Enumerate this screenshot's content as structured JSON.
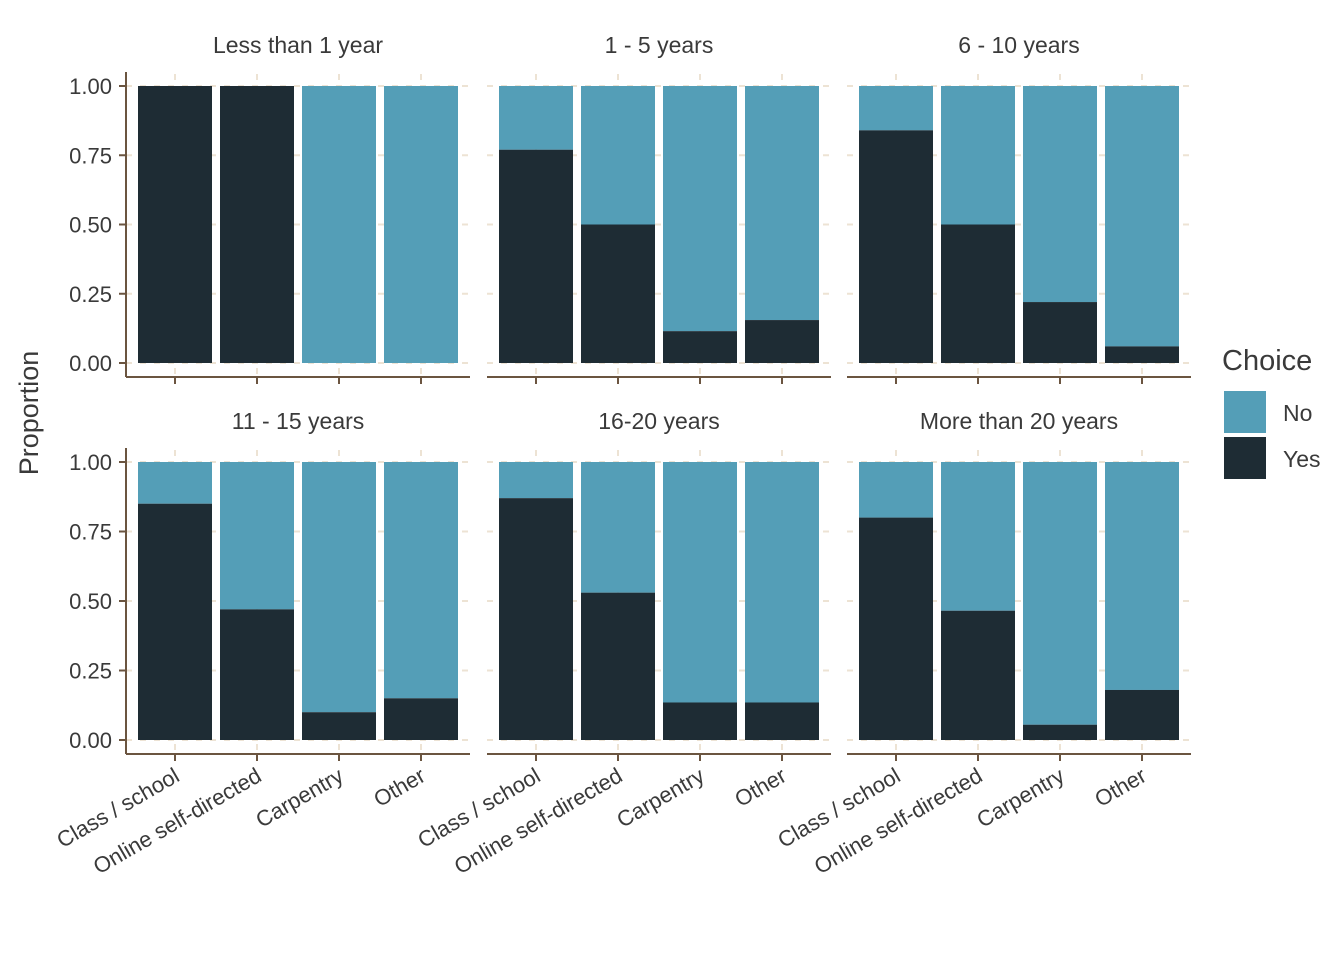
{
  "chart_data": {
    "type": "bar",
    "stacked": true,
    "facet_layout": "2x3 grid",
    "ylabel": "Proportion",
    "xlabel": "",
    "ylim": [
      0,
      1
    ],
    "yticks": [
      "0.00",
      "0.25",
      "0.50",
      "0.75",
      "1.00"
    ],
    "categories": [
      "Class / school",
      "Online self-directed",
      "Carpentry",
      "Other"
    ],
    "legend": {
      "title": "Choice",
      "placement": "right",
      "entries": [
        {
          "label": "No",
          "color": "#549EB7"
        },
        {
          "label": "Yes",
          "color": "#1E2C34"
        }
      ]
    },
    "colors": {
      "No": "#549EB7",
      "Yes": "#1E2C34",
      "axis": "#6B5540",
      "grid": "#EDE3D4",
      "text": "#3A3A3A"
    },
    "facets": [
      {
        "title": "Less than 1 year",
        "yes": [
          1.0,
          1.0,
          0.0,
          0.0
        ]
      },
      {
        "title": "1 - 5 years",
        "yes": [
          0.77,
          0.5,
          0.115,
          0.155
        ]
      },
      {
        "title": "6 - 10 years",
        "yes": [
          0.84,
          0.5,
          0.22,
          0.06
        ]
      },
      {
        "title": "11 - 15 years",
        "yes": [
          0.85,
          0.47,
          0.1,
          0.15
        ]
      },
      {
        "title": "16-20 years",
        "yes": [
          0.87,
          0.53,
          0.135,
          0.135
        ]
      },
      {
        "title": "More than 20 years",
        "yes": [
          0.8,
          0.465,
          0.055,
          0.18
        ]
      }
    ]
  }
}
